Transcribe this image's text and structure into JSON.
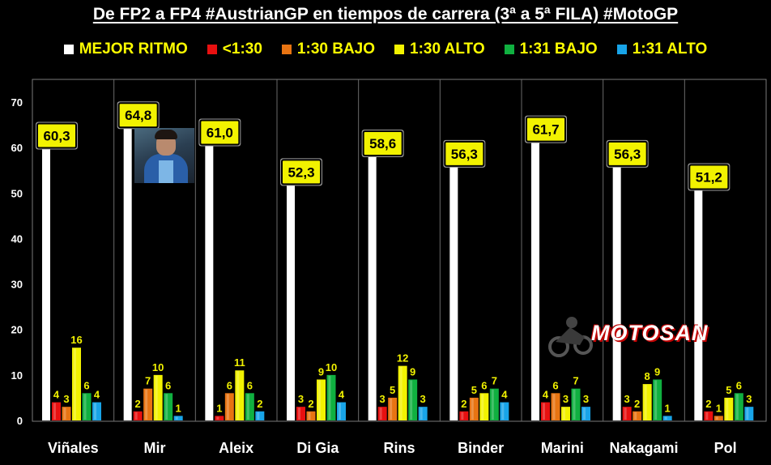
{
  "colors": {
    "background": "#000000",
    "series": [
      "#ffffff",
      "#e81010",
      "#e87412",
      "#f2f200",
      "#10b040",
      "#18a4e8"
    ],
    "label_box_fill": "#f2f200",
    "label_box_stroke": "#000000"
  },
  "chart_data": {
    "type": "bar",
    "title": "De FP2 a FP4 #AustrianGP en tiempos de carrera (3ª a 5ª FILA) #MotoGP",
    "xlabel": "",
    "ylabel": "",
    "ylim": [
      0,
      70
    ],
    "yticks": [
      "0",
      "10",
      "20",
      "30",
      "40",
      "50",
      "60",
      "70"
    ],
    "legend_position": "top",
    "grid": false,
    "categories": [
      "Viñales",
      "Mir",
      "Aleix",
      "Di Gia",
      "Rins",
      "Binder",
      "Marini",
      "Nakagami",
      "Pol"
    ],
    "series": [
      {
        "name": "MEJOR RITMO",
        "values": [
          60.3,
          64.8,
          61.0,
          52.3,
          58.6,
          56.3,
          61.7,
          56.3,
          51.2
        ],
        "labels": [
          "60,3",
          "64,8",
          "61,0",
          "52,3",
          "58,6",
          "56,3",
          "61,7",
          "56,3",
          "51,2"
        ]
      },
      {
        "name": "<1:30",
        "values": [
          4,
          2,
          1,
          3,
          3,
          2,
          4,
          3,
          2
        ]
      },
      {
        "name": "1:30 BAJO",
        "values": [
          3,
          7,
          6,
          2,
          5,
          5,
          6,
          2,
          1
        ]
      },
      {
        "name": "1:30 ALTO",
        "values": [
          16,
          10,
          11,
          9,
          12,
          6,
          3,
          8,
          5
        ]
      },
      {
        "name": "1:31 BAJO",
        "values": [
          6,
          6,
          6,
          10,
          9,
          7,
          7,
          9,
          6
        ]
      },
      {
        "name": "1:31 ALTO",
        "values": [
          4,
          1,
          2,
          4,
          3,
          4,
          3,
          1,
          3
        ]
      }
    ]
  },
  "watermark": {
    "text": "MOTOSAN"
  },
  "photo": {
    "icon": "rider-photo-icon"
  }
}
